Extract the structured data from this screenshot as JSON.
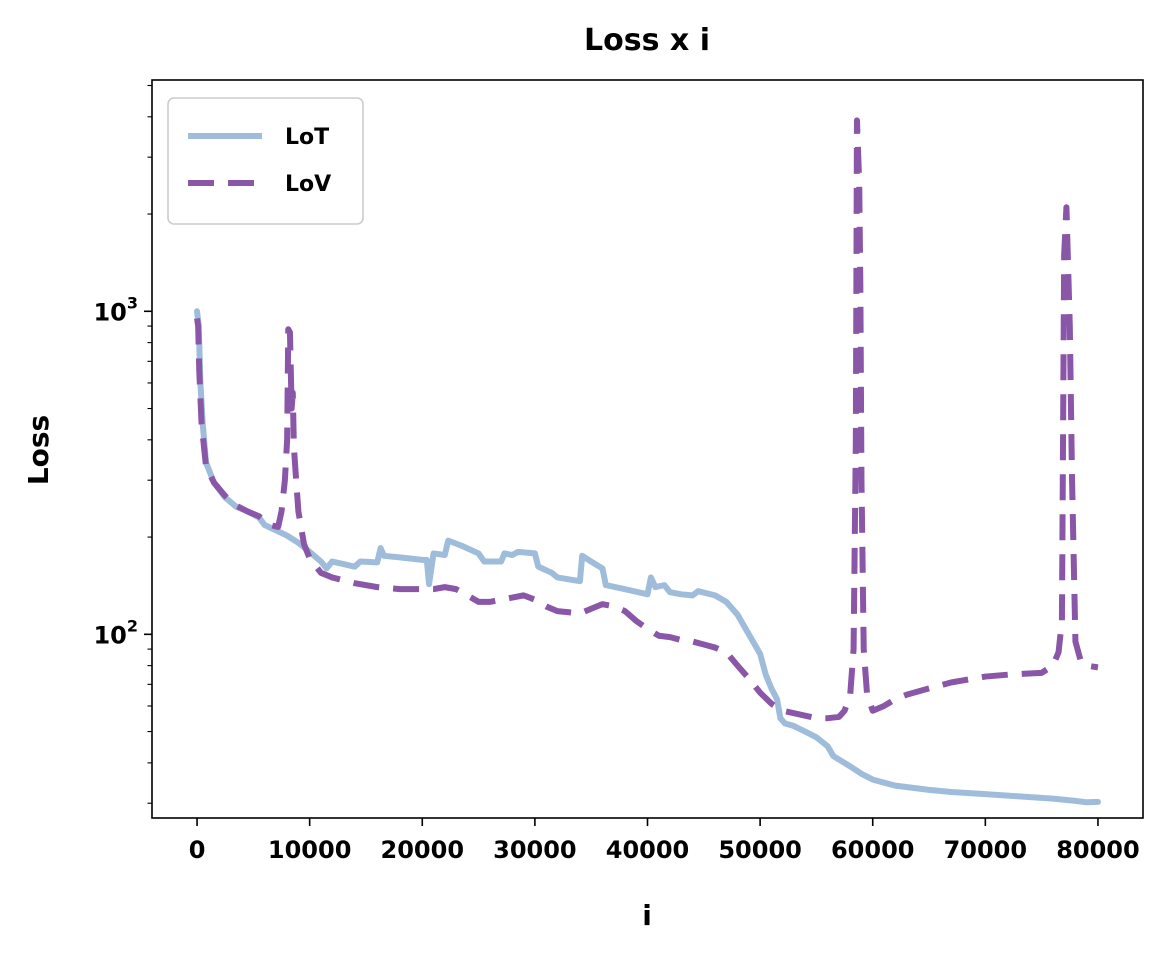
{
  "chart_data": {
    "type": "line",
    "title": "Loss x i",
    "xlabel": "i",
    "ylabel": "Loss",
    "xlim": [
      -4000,
      84000
    ],
    "ylim": [
      27,
      5200
    ],
    "yscale": "log",
    "x_ticks": [
      0,
      10000,
      20000,
      30000,
      40000,
      50000,
      60000,
      70000,
      80000
    ],
    "x_tick_labels": [
      "0",
      "10000",
      "20000",
      "30000",
      "40000",
      "50000",
      "60000",
      "70000",
      "80000"
    ],
    "y_ticks": [
      {
        "value": 100,
        "base": "10",
        "exp": "2"
      },
      {
        "value": 1000,
        "base": "10",
        "exp": "3"
      }
    ],
    "legend": {
      "position": "top-left"
    },
    "series": [
      {
        "name": "LoT",
        "color": "#9fbddb",
        "style": "solid",
        "points": [
          [
            0,
            1000
          ],
          [
            150,
            900
          ],
          [
            300,
            600
          ],
          [
            500,
            450
          ],
          [
            800,
            340
          ],
          [
            1500,
            295
          ],
          [
            2500,
            265
          ],
          [
            3500,
            248
          ],
          [
            4500,
            240
          ],
          [
            5500,
            230
          ],
          [
            6000,
            218
          ],
          [
            7000,
            210
          ],
          [
            8000,
            202
          ],
          [
            9000,
            192
          ],
          [
            10000,
            180
          ],
          [
            11000,
            168
          ],
          [
            11500,
            160
          ],
          [
            12000,
            168
          ],
          [
            13000,
            165
          ],
          [
            14000,
            162
          ],
          [
            14500,
            168
          ],
          [
            16000,
            167
          ],
          [
            16300,
            185
          ],
          [
            16600,
            175
          ],
          [
            18000,
            173
          ],
          [
            20000,
            170
          ],
          [
            20400,
            170
          ],
          [
            20600,
            143
          ],
          [
            21000,
            178
          ],
          [
            22000,
            176
          ],
          [
            22300,
            195
          ],
          [
            23500,
            188
          ],
          [
            25000,
            178
          ],
          [
            25500,
            168
          ],
          [
            27000,
            168
          ],
          [
            27300,
            178
          ],
          [
            28000,
            176
          ],
          [
            28500,
            180
          ],
          [
            30000,
            178
          ],
          [
            30300,
            162
          ],
          [
            31500,
            155
          ],
          [
            32000,
            150
          ],
          [
            33000,
            148
          ],
          [
            34000,
            146
          ],
          [
            34200,
            175
          ],
          [
            35000,
            168
          ],
          [
            36000,
            160
          ],
          [
            36300,
            142
          ],
          [
            38000,
            138
          ],
          [
            40000,
            133
          ],
          [
            40300,
            150
          ],
          [
            40700,
            140
          ],
          [
            41500,
            142
          ],
          [
            42000,
            135
          ],
          [
            43000,
            133
          ],
          [
            44000,
            132
          ],
          [
            44500,
            136
          ],
          [
            46000,
            132
          ],
          [
            47000,
            126
          ],
          [
            48000,
            115
          ],
          [
            49000,
            100
          ],
          [
            50000,
            87
          ],
          [
            50500,
            75
          ],
          [
            51000,
            68
          ],
          [
            51500,
            63
          ],
          [
            51800,
            55
          ],
          [
            52200,
            53
          ],
          [
            53000,
            52
          ],
          [
            54000,
            50
          ],
          [
            55000,
            48
          ],
          [
            56000,
            45
          ],
          [
            56500,
            42
          ],
          [
            58000,
            39
          ],
          [
            59000,
            37
          ],
          [
            60000,
            35.5
          ],
          [
            62000,
            34
          ],
          [
            65000,
            33
          ],
          [
            67000,
            32.5
          ],
          [
            70000,
            32
          ],
          [
            73000,
            31.5
          ],
          [
            76000,
            31
          ],
          [
            78000,
            30.5
          ],
          [
            79000,
            30.2
          ],
          [
            80000,
            30.3
          ]
        ]
      },
      {
        "name": "LoV",
        "color": "#8956a8",
        "style": "dashed",
        "points": [
          [
            0,
            950
          ],
          [
            100,
            900
          ],
          [
            200,
            650
          ],
          [
            400,
            450
          ],
          [
            800,
            330
          ],
          [
            1500,
            295
          ],
          [
            2500,
            268
          ],
          [
            3500,
            250
          ],
          [
            4500,
            240
          ],
          [
            5500,
            232
          ],
          [
            6500,
            218
          ],
          [
            7200,
            215
          ],
          [
            7500,
            240
          ],
          [
            7800,
            300
          ],
          [
            8000,
            400
          ],
          [
            8100,
            880
          ],
          [
            8250,
            860
          ],
          [
            8400,
            500
          ],
          [
            8500,
            560
          ],
          [
            8600,
            380
          ],
          [
            8800,
            300
          ],
          [
            9000,
            240
          ],
          [
            9500,
            190
          ],
          [
            10000,
            172
          ],
          [
            11000,
            155
          ],
          [
            12000,
            150
          ],
          [
            14000,
            144
          ],
          [
            16000,
            140
          ],
          [
            18000,
            138
          ],
          [
            20000,
            138
          ],
          [
            21000,
            138
          ],
          [
            22000,
            140
          ],
          [
            23000,
            138
          ],
          [
            24000,
            132
          ],
          [
            25000,
            126
          ],
          [
            26000,
            126
          ],
          [
            27000,
            128
          ],
          [
            28000,
            130
          ],
          [
            29000,
            132
          ],
          [
            30000,
            128
          ],
          [
            31000,
            122
          ],
          [
            32000,
            118
          ],
          [
            33000,
            117
          ],
          [
            34000,
            116
          ],
          [
            35000,
            120
          ],
          [
            36000,
            124
          ],
          [
            37000,
            122
          ],
          [
            38000,
            118
          ],
          [
            39000,
            110
          ],
          [
            40000,
            104
          ],
          [
            41000,
            99
          ],
          [
            42000,
            98
          ],
          [
            43000,
            96
          ],
          [
            44000,
            95
          ],
          [
            45000,
            93
          ],
          [
            46000,
            91
          ],
          [
            47000,
            88
          ],
          [
            48000,
            80
          ],
          [
            49000,
            73
          ],
          [
            50000,
            66
          ],
          [
            51000,
            61
          ],
          [
            52000,
            58
          ],
          [
            53000,
            57
          ],
          [
            54000,
            56
          ],
          [
            55000,
            55
          ],
          [
            56000,
            55
          ],
          [
            57000,
            55.5
          ],
          [
            57500,
            58
          ],
          [
            58000,
            65
          ],
          [
            58300,
            90
          ],
          [
            58500,
            400
          ],
          [
            58600,
            3900
          ],
          [
            58800,
            2500
          ],
          [
            58900,
            1200
          ],
          [
            59000,
            300
          ],
          [
            59200,
            90
          ],
          [
            59500,
            65
          ],
          [
            60000,
            58
          ],
          [
            61000,
            60
          ],
          [
            62000,
            63
          ],
          [
            63000,
            65
          ],
          [
            65000,
            68
          ],
          [
            67000,
            71
          ],
          [
            68000,
            72
          ],
          [
            70000,
            74
          ],
          [
            72000,
            75
          ],
          [
            75000,
            76
          ],
          [
            76000,
            80
          ],
          [
            76500,
            88
          ],
          [
            76800,
            110
          ],
          [
            77000,
            1500
          ],
          [
            77200,
            2100
          ],
          [
            77500,
            900
          ],
          [
            77700,
            300
          ],
          [
            78000,
            95
          ],
          [
            78500,
            82
          ],
          [
            79000,
            80
          ],
          [
            80000,
            79
          ]
        ]
      }
    ]
  }
}
